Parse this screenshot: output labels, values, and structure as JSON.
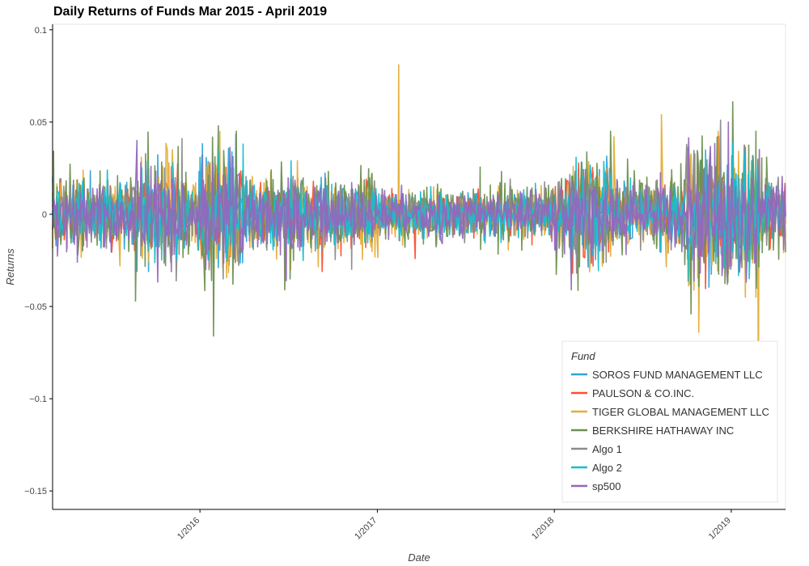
{
  "chart_data": {
    "type": "line",
    "title": "Daily Returns of Funds Mar 2015 - April 2019",
    "xlabel": "Date",
    "ylabel": "Returns",
    "xlim": [
      "2015-03-03",
      "2019-04-23"
    ],
    "ylim": [
      -0.16,
      0.103
    ],
    "x_ticks": [
      "2016-01-01",
      "2017-01-01",
      "2018-01-01",
      "2019-01-01"
    ],
    "x_tick_labels": [
      "1/2016",
      "1/2017",
      "1/2018",
      "1/2019"
    ],
    "y_ticks": [
      0.1,
      0.05,
      0,
      -0.05,
      -0.1,
      -0.15
    ],
    "y_tick_labels": [
      "0.1",
      "0.05",
      "0",
      "−0.05",
      "−0.1",
      "−0.15"
    ],
    "grid": false,
    "legend_title": "Fund",
    "legend_position": "bottom-right",
    "series": [
      {
        "name": "SOROS FUND MANAGEMENT LLC",
        "color": "#30a2da",
        "volatility": 0.0075,
        "spikes": [
          [
            "2015-08-24",
            -0.031
          ],
          [
            "2016-01-20",
            -0.026
          ],
          [
            "2018-02-05",
            -0.027
          ],
          [
            "2018-12-26",
            0.028
          ]
        ]
      },
      {
        "name": "PAULSON & CO.INC.",
        "color": "#fc4f30",
        "volatility": 0.007,
        "spikes": [
          [
            "2016-09-09",
            -0.031
          ],
          [
            "2017-03-20",
            -0.024
          ],
          [
            "2018-02-08",
            -0.032
          ],
          [
            "2018-03-22",
            -0.028
          ]
        ]
      },
      {
        "name": "TIGER GLOBAL MANAGEMENT LLC",
        "color": "#e5ae38",
        "volatility": 0.0095,
        "spikes": [
          [
            "2017-02-14",
            0.081
          ],
          [
            "2018-05-04",
            0.042
          ],
          [
            "2018-08-10",
            0.054
          ],
          [
            "2018-10-26",
            -0.064
          ],
          [
            "2019-02-26",
            -0.139
          ],
          [
            "2016-07-20",
            0.029
          ]
        ]
      },
      {
        "name": "BERKSHIRE HATHAWAY INC",
        "color": "#6d904f",
        "volatility": 0.011,
        "spikes": [
          [
            "2016-02-08",
            0.048
          ],
          [
            "2016-01-29",
            -0.066
          ],
          [
            "2015-08-21",
            -0.047
          ],
          [
            "2016-06-24",
            -0.041
          ],
          [
            "2019-01-04",
            0.061
          ],
          [
            "2018-10-10",
            -0.054
          ]
        ]
      },
      {
        "name": "Algo 1",
        "color": "#8b8b8b",
        "volatility": 0.008,
        "spikes": [
          [
            "2015-11-25",
            0.041
          ],
          [
            "2018-12-10",
            0.051
          ],
          [
            "2018-12-24",
            -0.038
          ]
        ]
      },
      {
        "name": "Algo 2",
        "color": "#17becf",
        "volatility": 0.008,
        "spikes": [
          [
            "2018-02-05",
            -0.033
          ],
          [
            "2019-02-12",
            0.029
          ],
          [
            "2016-03-01",
            0.024
          ]
        ]
      },
      {
        "name": "sp500",
        "color": "#9467bd",
        "volatility": 0.0085,
        "spikes": [
          [
            "2015-08-24",
            0.04
          ],
          [
            "2016-01-13",
            -0.03
          ],
          [
            "2018-02-05",
            -0.041
          ],
          [
            "2018-12-26",
            0.05
          ],
          [
            "2016-06-27",
            -0.036
          ]
        ]
      }
    ]
  }
}
